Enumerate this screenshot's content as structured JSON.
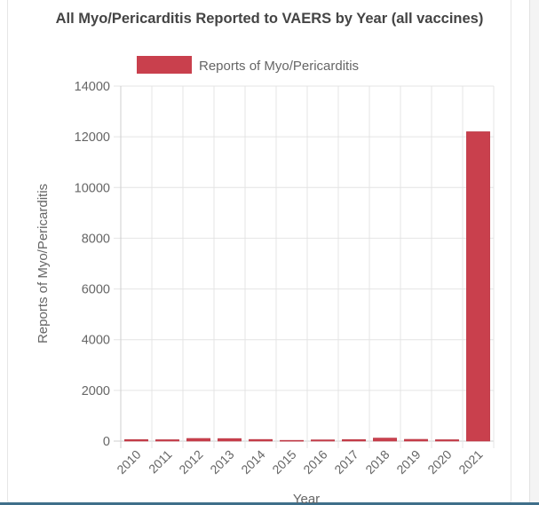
{
  "chart_data": {
    "type": "bar",
    "title": "All Myo/Pericarditis Reported to VAERS by Year (all vaccines)",
    "xlabel": "Year",
    "ylabel": "Reports of Myo/Pericarditis",
    "categories": [
      "2010",
      "2011",
      "2012",
      "2013",
      "2014",
      "2015",
      "2016",
      "2017",
      "2018",
      "2019",
      "2020",
      "2021"
    ],
    "series": [
      {
        "name": "Reports of Myo/Pericarditis",
        "color": "#c9404d",
        "values": [
          60,
          55,
          105,
          100,
          65,
          30,
          50,
          60,
          120,
          70,
          55,
          12200
        ]
      }
    ],
    "ylim": [
      0,
      14000
    ],
    "yticks": [
      "0",
      "2000",
      "4000",
      "6000",
      "8000",
      "10000",
      "12000",
      "14000"
    ],
    "grid": true,
    "legend_position": "top-center"
  }
}
